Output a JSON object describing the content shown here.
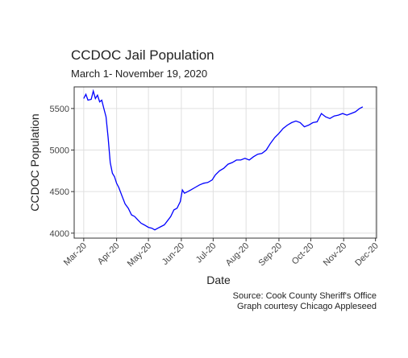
{
  "chart_data": {
    "type": "line",
    "title": "CCDOC Jail Population",
    "subtitle": "March 1- November 19, 2020",
    "x_label": "Date",
    "y_label": "CCDOC Population",
    "caption": [
      "Source: Cook County Sheriff's Office",
      "Graph courtesy Chicago Appleseed"
    ],
    "x": [
      61,
      63,
      65,
      68,
      70,
      72,
      74,
      76,
      78,
      80,
      82,
      84,
      86,
      88,
      90,
      92,
      94,
      97,
      100,
      103,
      106,
      109,
      112,
      115,
      118,
      122,
      125,
      128,
      131,
      134,
      137,
      140,
      143,
      146,
      149,
      152,
      154,
      156,
      159,
      162,
      166,
      170,
      174,
      178,
      182,
      185,
      189,
      193,
      197,
      201,
      205,
      209,
      213,
      217,
      221,
      225,
      229,
      233,
      237,
      241,
      245,
      249,
      253,
      257,
      261,
      265,
      269,
      273,
      277,
      281,
      285,
      289,
      293,
      297,
      301,
      305,
      309,
      313,
      317,
      321,
      324
    ],
    "series": [
      {
        "name": "CCDOC Population",
        "color": "#0000ff",
        "values": [
          5620,
          5670,
          5600,
          5610,
          5710,
          5620,
          5660,
          5580,
          5600,
          5500,
          5400,
          5150,
          4850,
          4720,
          4680,
          4600,
          4550,
          4450,
          4350,
          4300,
          4220,
          4200,
          4160,
          4120,
          4100,
          4070,
          4060,
          4040,
          4060,
          4080,
          4100,
          4150,
          4200,
          4280,
          4300,
          4380,
          4520,
          4480,
          4500,
          4520,
          4550,
          4580,
          4600,
          4610,
          4640,
          4700,
          4750,
          4780,
          4830,
          4850,
          4880,
          4880,
          4900,
          4880,
          4920,
          4950,
          4960,
          5000,
          5080,
          5150,
          5200,
          5260,
          5300,
          5330,
          5350,
          5330,
          5280,
          5300,
          5330,
          5340,
          5440,
          5400,
          5380,
          5410,
          5420,
          5440,
          5420,
          5440,
          5460,
          5500,
          5520
        ]
      }
    ],
    "xlim": [
      52,
      337
    ],
    "xticks": [
      {
        "value": 61,
        "label": "Mar-20"
      },
      {
        "value": 92,
        "label": "Apr-20"
      },
      {
        "value": 122,
        "label": "May-20"
      },
      {
        "value": 153,
        "label": "Jun-20"
      },
      {
        "value": 183,
        "label": "Jul-20"
      },
      {
        "value": 214,
        "label": "Aug-20"
      },
      {
        "value": 245,
        "label": "Sep-20"
      },
      {
        "value": 275,
        "label": "Oct-20"
      },
      {
        "value": 306,
        "label": "Nov-20"
      },
      {
        "value": 336,
        "label": "Dec-20"
      }
    ],
    "ylim": [
      3940,
      5760
    ],
    "yticks": [
      4000,
      4500,
      5000,
      5500
    ],
    "grid": true
  }
}
